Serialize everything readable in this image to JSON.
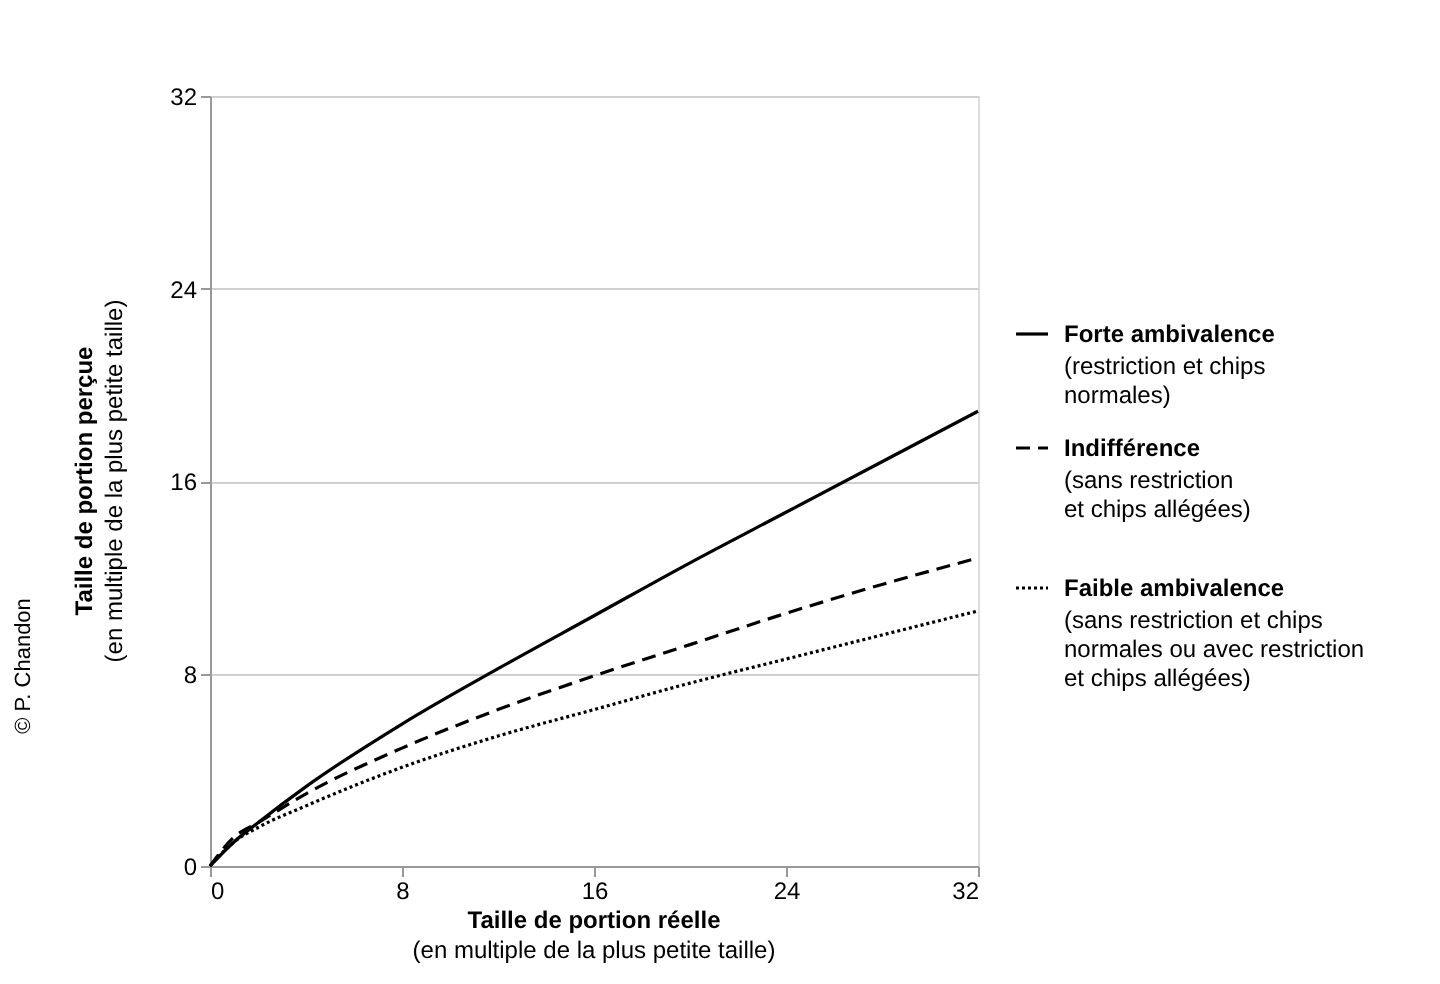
{
  "chart_data": {
    "type": "line",
    "xlabel": "Taille de portion réelle\n(en multiple de la plus petite taille)",
    "ylabel": "Taille de portion perçue\n(en multiple de la plus petite taille)",
    "x": [
      0,
      1,
      2,
      4,
      8,
      12,
      16,
      20,
      24,
      28,
      32
    ],
    "series": [
      {
        "name": "Forte ambivalence",
        "color": "#000000",
        "line_style": "solid",
        "values": [
          0,
          1.0,
          1.8,
          3.3,
          5.9,
          8.2,
          10.4,
          12.6,
          14.7,
          16.8,
          18.9
        ]
      },
      {
        "name": "Indifférence",
        "color": "#000000",
        "line_style": "dashed",
        "values": [
          0,
          1.2,
          1.8,
          3.0,
          4.9,
          6.5,
          7.9,
          9.2,
          10.5,
          11.7,
          12.8
        ]
      },
      {
        "name": "Faible ambivalence",
        "color": "#000000",
        "line_style": "dotted",
        "values": [
          0,
          1.0,
          1.6,
          2.5,
          4.1,
          5.4,
          6.5,
          7.6,
          8.6,
          9.6,
          10.6
        ]
      }
    ],
    "annotations": [
      "(restriction et chips\nnormales)",
      "(sans restriction\net chips allégées)",
      "(sans restriction et chips\nnormales ou avec restriction\net chips allégées)",
      "© P. Chandon"
    ],
    "xlim": [
      0,
      32
    ],
    "ylim": [
      0,
      32
    ],
    "xticks": [
      0,
      8,
      16,
      24,
      32
    ],
    "yticks": [
      0,
      8,
      16,
      24,
      32
    ],
    "grid": "y",
    "legend": "right",
    "marker": "none"
  }
}
